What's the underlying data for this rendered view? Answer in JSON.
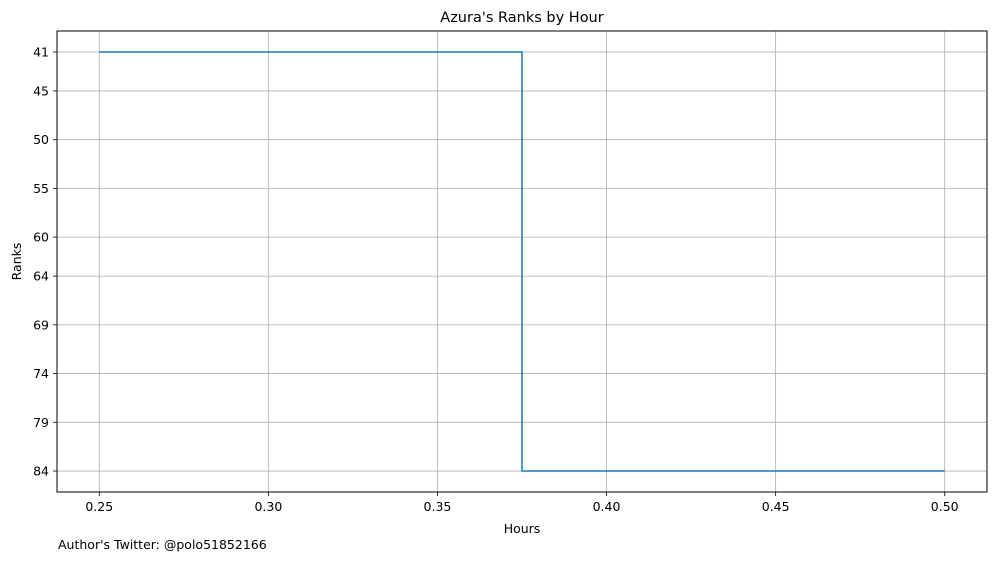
{
  "chart_data": {
    "type": "line",
    "title": "Azura's Ranks by Hour",
    "xlabel": "Hours",
    "ylabel": "Ranks",
    "x_ticks": [
      0.25,
      0.3,
      0.35,
      0.4,
      0.45,
      0.5
    ],
    "x_tick_labels": [
      "0.25",
      "0.30",
      "0.35",
      "0.40",
      "0.45",
      "0.50"
    ],
    "y_ticks": [
      41,
      45,
      50,
      55,
      60,
      64,
      69,
      74,
      79,
      84
    ],
    "y_tick_labels": [
      "41",
      "45",
      "50",
      "55",
      "60",
      "64",
      "69",
      "74",
      "79",
      "84"
    ],
    "xlim": [
      0.2375,
      0.5125
    ],
    "ylim": [
      86.15,
      38.85
    ],
    "y_inverted": true,
    "grid": true,
    "step": "post",
    "series": [
      {
        "color": "#1f77b4",
        "x": [
          0.25,
          0.375,
          0.5
        ],
        "y": [
          41,
          84,
          84
        ]
      }
    ]
  },
  "footer": {
    "credit": "Author's Twitter: @polo51852166"
  }
}
